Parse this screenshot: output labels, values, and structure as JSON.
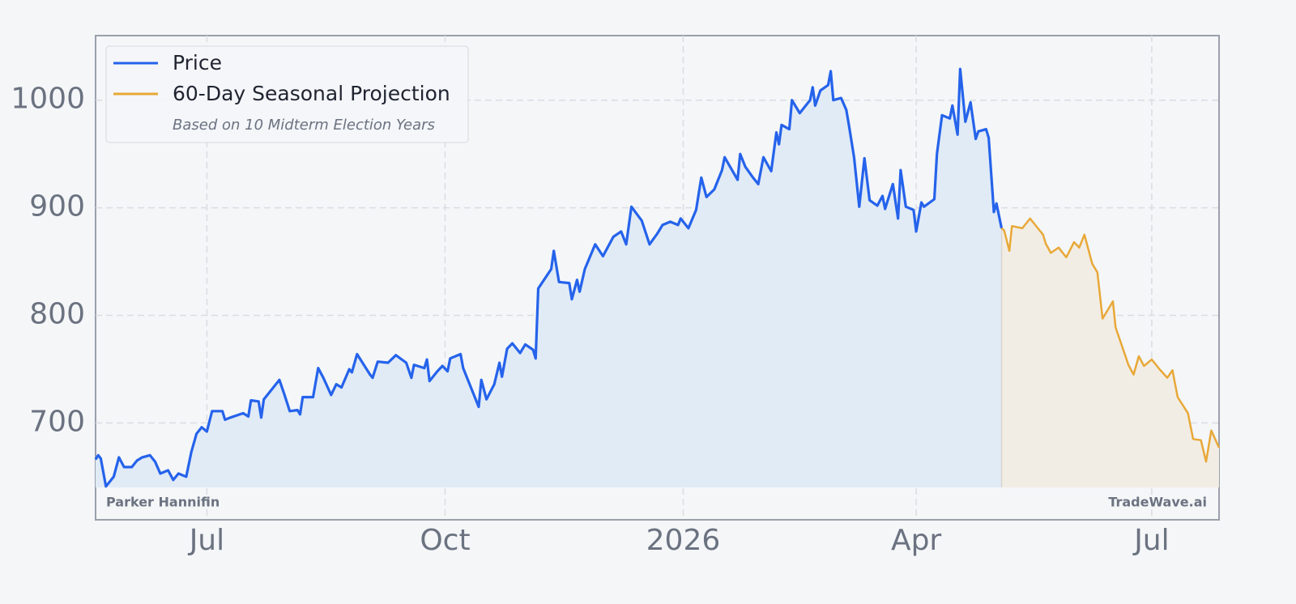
{
  "chart_data": {
    "type": "line",
    "xlim": [
      -43,
      391
    ],
    "ylim": [
      610,
      1060
    ],
    "xticks": [
      {
        "value": 0,
        "label": "Jul"
      },
      {
        "value": 92,
        "label": "Oct"
      },
      {
        "value": 184,
        "label": "2026"
      },
      {
        "value": 274,
        "label": "Apr"
      },
      {
        "value": 365,
        "label": "Jul"
      }
    ],
    "yticks": [
      700,
      800,
      900,
      1000
    ],
    "grid": true,
    "legend": "upper left",
    "legend_note": "Based on 10 Midterm Election Years",
    "company": "Parker Hannifin",
    "source": "TradeWave.ai",
    "series": [
      {
        "name": "Price",
        "color": "#2563eb",
        "fill": "#e1ebf6",
        "x": [
          -43,
          -42,
          -41,
          -39,
          -36,
          -34,
          -32,
          -29,
          -27,
          -25,
          -22,
          -20,
          -18,
          -15,
          -13,
          -11,
          -8,
          -6,
          -4,
          -2,
          0,
          2,
          6,
          7,
          9,
          14,
          16,
          17,
          20,
          21,
          22,
          28,
          30,
          32,
          35,
          36,
          37,
          41,
          43,
          45,
          48,
          50,
          52,
          55,
          56,
          58,
          63,
          64,
          66,
          70,
          73,
          77,
          79,
          80,
          84,
          85,
          86,
          89,
          91,
          93,
          94,
          98,
          99,
          101,
          105,
          106,
          108,
          111,
          113,
          114,
          116,
          118,
          121,
          123,
          126,
          127,
          128,
          133,
          134,
          136,
          140,
          141,
          143,
          144,
          146,
          150,
          153,
          157,
          160,
          162,
          164,
          168,
          171,
          174,
          176,
          179,
          182,
          183,
          186,
          189,
          191,
          193,
          196,
          199,
          200,
          205,
          206,
          208,
          211,
          213,
          215,
          218,
          220,
          221,
          222,
          225,
          226,
          229,
          233,
          234,
          235,
          237,
          240,
          241,
          242,
          245,
          247,
          248,
          250,
          252,
          254,
          256,
          259,
          261,
          262,
          265,
          267,
          268,
          270,
          273,
          274,
          276,
          277,
          281,
          282,
          284,
          287,
          288,
          290,
          291,
          293,
          295,
          297,
          298,
          301,
          302,
          304,
          305,
          307
        ],
        "values": [
          666,
          670,
          667,
          641,
          650,
          668,
          659,
          659,
          665,
          668,
          670,
          664,
          653,
          656,
          647,
          653,
          650,
          673,
          690,
          696,
          692,
          711,
          711,
          703,
          705,
          709,
          706,
          721,
          720,
          705,
          722,
          740,
          726,
          711,
          712,
          708,
          724,
          724,
          751,
          742,
          726,
          736,
          733,
          750,
          747,
          764,
          745,
          742,
          757,
          756,
          763,
          756,
          742,
          754,
          751,
          759,
          739,
          748,
          753,
          748,
          760,
          764,
          751,
          739,
          715,
          740,
          722,
          736,
          756,
          743,
          769,
          774,
          765,
          773,
          768,
          760,
          825,
          843,
          860,
          831,
          830,
          815,
          833,
          822,
          843,
          866,
          855,
          873,
          878,
          866,
          901,
          888,
          866,
          876,
          884,
          887,
          884,
          890,
          881,
          898,
          928,
          910,
          917,
          935,
          947,
          926,
          950,
          938,
          928,
          922,
          947,
          934,
          970,
          959,
          977,
          973,
          1000,
          988,
          1000,
          1012,
          995,
          1009,
          1014,
          1027,
          1000,
          1002,
          991,
          977,
          947,
          901,
          946,
          907,
          902,
          911,
          899,
          922,
          890,
          935,
          901,
          898,
          878,
          905,
          901,
          908,
          950,
          986,
          983,
          995,
          968,
          1029,
          980,
          998,
          964,
          971,
          973,
          965,
          896,
          904,
          881
        ]
      },
      {
        "name": "60-Day Seasonal Projection",
        "color": "#e8a838",
        "fill": "#f2ede4",
        "x": [
          307,
          308,
          310,
          311,
          315,
          318,
          321,
          323,
          324,
          326,
          329,
          332,
          335,
          337,
          339,
          342,
          344,
          346,
          350,
          351,
          356,
          358,
          360,
          362,
          365,
          368,
          371,
          373,
          375,
          379,
          381,
          384,
          386,
          388,
          391
        ],
        "values": [
          881,
          879,
          860,
          883,
          881,
          890,
          881,
          875,
          867,
          858,
          863,
          854,
          868,
          863,
          875,
          848,
          840,
          797,
          813,
          789,
          754,
          745,
          762,
          753,
          759,
          750,
          742,
          749,
          724,
          709,
          685,
          684,
          664,
          693,
          677
        ]
      }
    ]
  }
}
